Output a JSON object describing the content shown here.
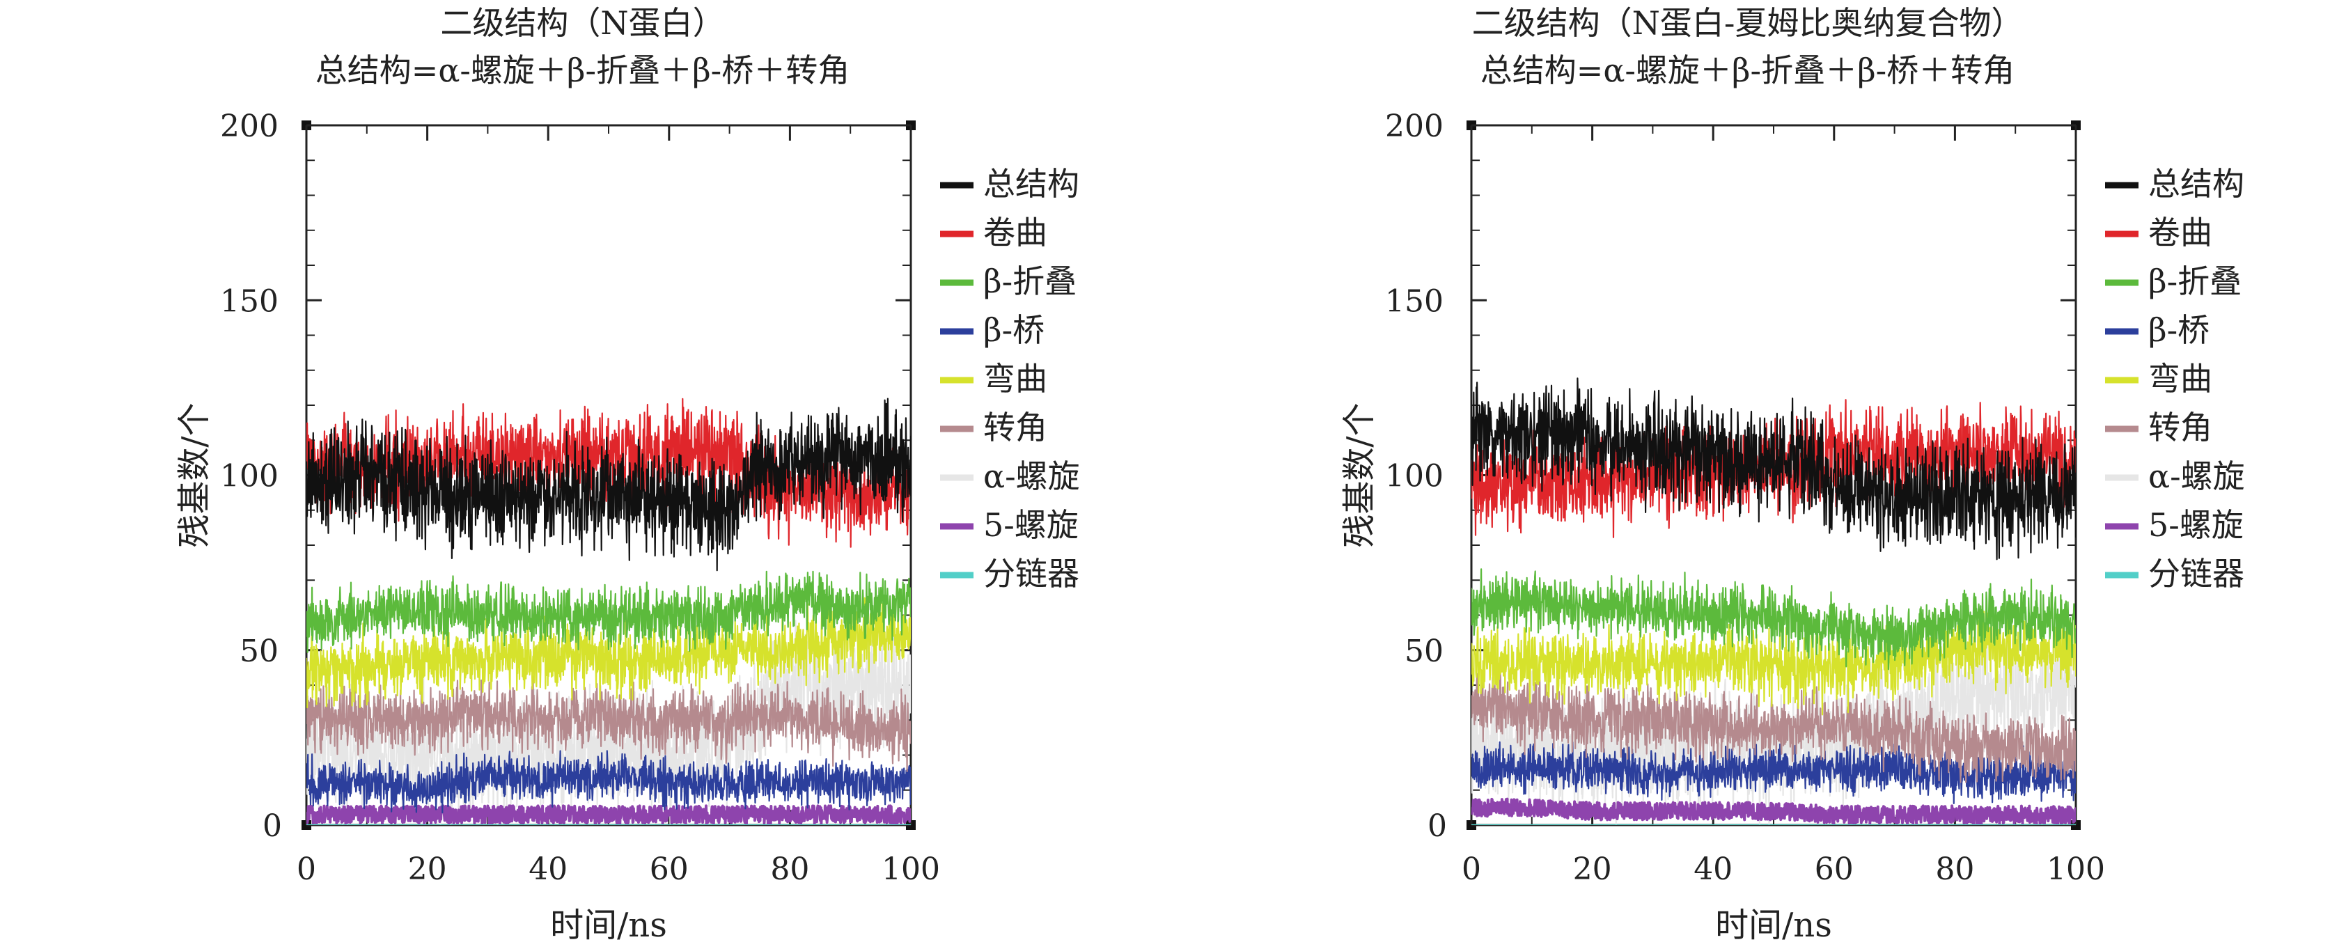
{
  "chart_data": [
    {
      "type": "line",
      "title": "二级结构（N蛋白）",
      "subtitle": "总结构=α-螺旋＋β-折叠＋β-桥＋转角",
      "xlabel": "时间/ns",
      "ylabel": "残基数/个",
      "xlim": [
        0,
        100
      ],
      "ylim": [
        0,
        200
      ],
      "xticks": [
        0,
        20,
        40,
        60,
        80,
        100
      ],
      "yticks": [
        0,
        50,
        100,
        150,
        200
      ],
      "legend_position": "right",
      "series": [
        {
          "name": "总结构",
          "color": "#111111",
          "x": [
            0,
            10,
            20,
            30,
            40,
            50,
            60,
            70,
            75,
            80,
            90,
            100
          ],
          "y": [
            96,
            100,
            96,
            94,
            94,
            95,
            93,
            90,
            102,
            104,
            106,
            102
          ]
        },
        {
          "name": "卷曲",
          "color": "#e0262b",
          "x": [
            0,
            10,
            20,
            30,
            40,
            50,
            60,
            70,
            75,
            80,
            90,
            100
          ],
          "y": [
            104,
            102,
            104,
            106,
            106,
            105,
            107,
            106,
            98,
            96,
            94,
            96
          ]
        },
        {
          "name": "β-折叠",
          "color": "#5cba3c",
          "x": [
            0,
            10,
            20,
            30,
            40,
            50,
            60,
            70,
            80,
            90,
            100
          ],
          "y": [
            58,
            60,
            62,
            60,
            60,
            59,
            60,
            60,
            64,
            62,
            64
          ]
        },
        {
          "name": "β-桥",
          "color": "#2c3f9c",
          "x": [
            0,
            10,
            20,
            30,
            40,
            50,
            60,
            70,
            80,
            90,
            100
          ],
          "y": [
            12,
            12,
            10,
            14,
            13,
            14,
            12,
            12,
            12,
            12,
            12
          ]
        },
        {
          "name": "弯曲",
          "color": "#d6e22c",
          "x": [
            0,
            10,
            20,
            30,
            40,
            50,
            60,
            70,
            80,
            90,
            100
          ],
          "y": [
            44,
            45,
            46,
            48,
            48,
            47,
            48,
            50,
            50,
            54,
            54
          ]
        },
        {
          "name": "转角",
          "color": "#b58a8e",
          "x": [
            0,
            10,
            20,
            30,
            40,
            50,
            60,
            70,
            80,
            90,
            100
          ],
          "y": [
            30,
            30,
            30,
            32,
            30,
            30,
            30,
            30,
            30,
            28,
            28
          ]
        },
        {
          "name": "α-螺旋",
          "color": "#e6e6e6",
          "x": [
            0,
            10,
            20,
            30,
            40,
            50,
            60,
            70,
            80,
            90,
            100
          ],
          "y": [
            22,
            20,
            22,
            20,
            20,
            22,
            20,
            22,
            42,
            40,
            40
          ]
        },
        {
          "name": "5-螺旋",
          "color": "#8e44ad",
          "x": [
            0,
            10,
            20,
            30,
            40,
            50,
            60,
            70,
            80,
            90,
            100
          ],
          "y": [
            3,
            3,
            3,
            3,
            3,
            3,
            3,
            3,
            3,
            3,
            3
          ]
        },
        {
          "name": "分链器",
          "color": "#52cfc8",
          "x": [
            0,
            100
          ],
          "y": [
            0,
            0
          ]
        }
      ]
    },
    {
      "type": "line",
      "title": "二级结构（N蛋白-夏姆比奥纳复合物）",
      "subtitle": "总结构=α-螺旋＋β-折叠＋β-桥＋转角",
      "xlabel": "时间/ns",
      "ylabel": "残基数/个",
      "xlim": [
        0,
        100
      ],
      "ylim": [
        0,
        200
      ],
      "xticks": [
        0,
        20,
        40,
        60,
        80,
        100
      ],
      "yticks": [
        0,
        50,
        100,
        150,
        200
      ],
      "legend_position": "right",
      "series": [
        {
          "name": "总结构",
          "color": "#111111",
          "x": [
            0,
            10,
            20,
            30,
            40,
            50,
            55,
            60,
            70,
            80,
            90,
            100
          ],
          "y": [
            110,
            112,
            110,
            108,
            106,
            104,
            106,
            96,
            94,
            94,
            94,
            96
          ]
        },
        {
          "name": "卷曲",
          "color": "#e0262b",
          "x": [
            0,
            10,
            20,
            30,
            40,
            50,
            55,
            60,
            70,
            80,
            90,
            100
          ],
          "y": [
            98,
            98,
            98,
            100,
            100,
            102,
            102,
            106,
            106,
            106,
            106,
            104
          ]
        },
        {
          "name": "β-折叠",
          "color": "#5cba3c",
          "x": [
            0,
            10,
            20,
            30,
            40,
            50,
            60,
            70,
            80,
            90,
            100
          ],
          "y": [
            62,
            64,
            62,
            62,
            60,
            60,
            56,
            54,
            58,
            60,
            58
          ]
        },
        {
          "name": "β-桥",
          "color": "#2c3f9c",
          "x": [
            0,
            10,
            20,
            30,
            40,
            50,
            60,
            70,
            80,
            90,
            100
          ],
          "y": [
            16,
            16,
            16,
            15,
            15,
            16,
            16,
            16,
            14,
            14,
            14
          ]
        },
        {
          "name": "弯曲",
          "color": "#d6e22c",
          "x": [
            0,
            10,
            20,
            30,
            40,
            50,
            60,
            70,
            80,
            90,
            100
          ],
          "y": [
            46,
            46,
            46,
            46,
            46,
            46,
            44,
            46,
            50,
            50,
            50
          ]
        },
        {
          "name": "转角",
          "color": "#b58a8e",
          "x": [
            0,
            10,
            20,
            30,
            40,
            50,
            60,
            70,
            80,
            90,
            100
          ],
          "y": [
            34,
            32,
            30,
            30,
            28,
            28,
            28,
            26,
            22,
            22,
            22
          ]
        },
        {
          "name": "α-螺旋",
          "color": "#e6e6e6",
          "x": [
            0,
            10,
            20,
            30,
            40,
            50,
            60,
            70,
            80,
            90,
            100
          ],
          "y": [
            22,
            22,
            20,
            22,
            22,
            22,
            24,
            30,
            36,
            38,
            38
          ]
        },
        {
          "name": "5-螺旋",
          "color": "#8e44ad",
          "x": [
            0,
            10,
            20,
            30,
            40,
            50,
            60,
            70,
            80,
            90,
            100
          ],
          "y": [
            5,
            5,
            4,
            4,
            4,
            4,
            3,
            3,
            3,
            3,
            3
          ]
        },
        {
          "name": "分链器",
          "color": "#52cfc8",
          "x": [
            0,
            100
          ],
          "y": [
            0,
            0
          ]
        }
      ]
    }
  ]
}
